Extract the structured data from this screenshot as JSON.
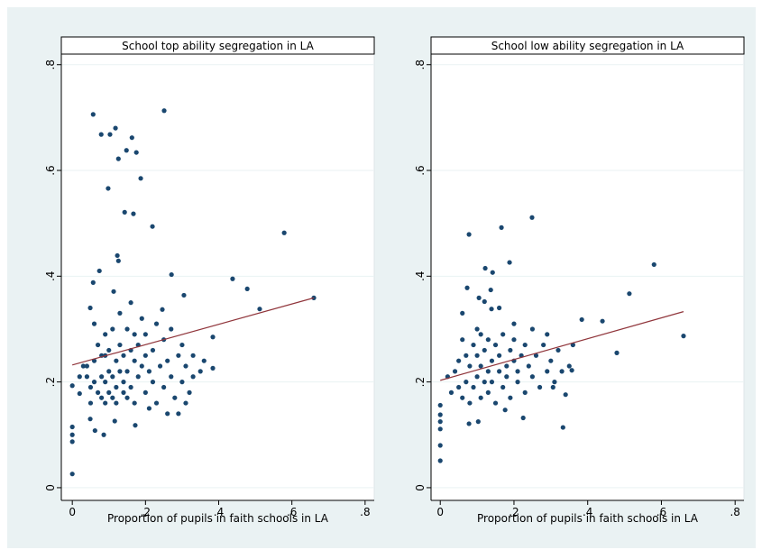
{
  "chart_data": [
    {
      "type": "scatter",
      "title": "School top ability segregation in LA",
      "x_label": "Proportion of pupils in faith schools in LA",
      "points": {
        "color": "#1a476f",
        "x": [
          0.057,
          0.251,
          0.079,
          0.103,
          0.118,
          0.163,
          0.148,
          0.126,
          0.175,
          0.187,
          0.098,
          0.143,
          0.167,
          0.219,
          0.579,
          0.123,
          0.126,
          0.074,
          0.057,
          0.271,
          0.438,
          0.478,
          0.113,
          0.305,
          0.512,
          0.049,
          0.16,
          0.246,
          0.66,
          0.384,
          0.384,
          0,
          0,
          0,
          0,
          0,
          0.086,
          0.062,
          0.049,
          0.116,
          0.172,
          0.02,
          0.02,
          0.03,
          0.04,
          0.05,
          0.05,
          0.06,
          0.06,
          0.07,
          0.07,
          0.08,
          0.08,
          0.08,
          0.09,
          0.09,
          0.09,
          0.1,
          0.1,
          0.1,
          0.11,
          0.11,
          0.11,
          0.12,
          0.12,
          0.12,
          0.13,
          0.13,
          0.13,
          0.14,
          0.14,
          0.14,
          0.15,
          0.15,
          0.15,
          0.16,
          0.16,
          0.17,
          0.17,
          0.17,
          0.18,
          0.18,
          0.19,
          0.19,
          0.2,
          0.2,
          0.2,
          0.21,
          0.21,
          0.22,
          0.22,
          0.23,
          0.23,
          0.24,
          0.25,
          0.25,
          0.26,
          0.27,
          0.27,
          0.28,
          0.29,
          0.3,
          0.3,
          0.31,
          0.32,
          0.33,
          0.33,
          0.35,
          0.36,
          0.29,
          0.31,
          0.26,
          0.06,
          0.09,
          0.04
        ],
        "y": [
          0.706,
          0.713,
          0.668,
          0.668,
          0.68,
          0.662,
          0.638,
          0.622,
          0.634,
          0.585,
          0.566,
          0.521,
          0.518,
          0.494,
          0.482,
          0.439,
          0.429,
          0.41,
          0.388,
          0.403,
          0.395,
          0.376,
          0.371,
          0.364,
          0.338,
          0.34,
          0.35,
          0.337,
          0.359,
          0.285,
          0.226,
          0.026,
          0.087,
          0.1,
          0.115,
          0.193,
          0.1,
          0.108,
          0.13,
          0.126,
          0.118,
          0.178,
          0.21,
          0.23,
          0.21,
          0.19,
          0.16,
          0.24,
          0.2,
          0.18,
          0.27,
          0.21,
          0.17,
          0.25,
          0.2,
          0.16,
          0.29,
          0.22,
          0.18,
          0.26,
          0.17,
          0.21,
          0.3,
          0.19,
          0.24,
          0.16,
          0.22,
          0.33,
          0.27,
          0.2,
          0.18,
          0.25,
          0.22,
          0.3,
          0.17,
          0.26,
          0.19,
          0.24,
          0.29,
          0.16,
          0.21,
          0.27,
          0.23,
          0.32,
          0.18,
          0.25,
          0.29,
          0.22,
          0.15,
          0.26,
          0.2,
          0.31,
          0.16,
          0.23,
          0.28,
          0.19,
          0.24,
          0.3,
          0.21,
          0.17,
          0.25,
          0.2,
          0.27,
          0.23,
          0.18,
          0.21,
          0.25,
          0.22,
          0.24,
          0.14,
          0.16,
          0.14,
          0.31,
          0.25,
          0.23
        ]
      },
      "fit": {
        "color": "#90353b",
        "x": [
          0,
          0.66
        ],
        "y": [
          0.232,
          0.359
        ]
      },
      "xlim": [
        -0.03,
        0.825
      ],
      "ylim": [
        -0.024,
        0.82
      ],
      "xticks": [
        0,
        {
          "value": 0.2,
          "label": ".2"
        },
        {
          "value": 0.4,
          "label": ".4"
        },
        {
          "value": 0.6,
          "label": ".6"
        },
        {
          "value": 0.8,
          "label": ".8"
        }
      ],
      "yticks": [
        0,
        {
          "value": 0.2,
          "label": ".2"
        },
        {
          "value": 0.4,
          "label": ".4"
        },
        {
          "value": 0.6,
          "label": ".6"
        },
        {
          "value": 0.8,
          "label": ".8"
        }
      ],
      "grid": true
    },
    {
      "type": "scatter",
      "title": "School low ability segregation in LA",
      "x_label": "Proportion of pupils in faith schools in LA",
      "points": {
        "color": "#1a476f",
        "x": [
          0.078,
          0.166,
          0.249,
          0.58,
          0.188,
          0.122,
          0.142,
          0.073,
          0.137,
          0.513,
          0.105,
          0.12,
          0.139,
          0.44,
          0.384,
          0.66,
          0.479,
          0.333,
          0,
          0,
          0,
          0,
          0,
          0,
          0.078,
          0.103,
          0.176,
          0.225,
          0.34,
          0.357,
          0.306,
          0.02,
          0.03,
          0.04,
          0.05,
          0.05,
          0.06,
          0.06,
          0.07,
          0.07,
          0.08,
          0.08,
          0.09,
          0.09,
          0.1,
          0.1,
          0.11,
          0.11,
          0.11,
          0.12,
          0.12,
          0.13,
          0.13,
          0.13,
          0.14,
          0.14,
          0.15,
          0.15,
          0.16,
          0.16,
          0.17,
          0.17,
          0.18,
          0.18,
          0.19,
          0.19,
          0.2,
          0.2,
          0.21,
          0.21,
          0.22,
          0.23,
          0.23,
          0.24,
          0.25,
          0.25,
          0.26,
          0.27,
          0.28,
          0.29,
          0.29,
          0.3,
          0.31,
          0.32,
          0.33,
          0.35,
          0.36,
          0.06,
          0.1,
          0.16,
          0.2
        ],
        "y": [
          0.479,
          0.492,
          0.511,
          0.422,
          0.426,
          0.415,
          0.407,
          0.378,
          0.374,
          0.367,
          0.359,
          0.352,
          0.338,
          0.315,
          0.318,
          0.287,
          0.255,
          0.114,
          0.051,
          0.08,
          0.111,
          0.125,
          0.138,
          0.156,
          0.121,
          0.125,
          0.147,
          0.132,
          0.176,
          0.222,
          0.19,
          0.21,
          0.18,
          0.22,
          0.19,
          0.24,
          0.17,
          0.28,
          0.2,
          0.25,
          0.16,
          0.23,
          0.27,
          0.19,
          0.21,
          0.25,
          0.17,
          0.23,
          0.29,
          0.2,
          0.26,
          0.22,
          0.18,
          0.28,
          0.24,
          0.2,
          0.27,
          0.16,
          0.22,
          0.25,
          0.19,
          0.29,
          0.23,
          0.21,
          0.26,
          0.17,
          0.24,
          0.28,
          0.2,
          0.22,
          0.25,
          0.18,
          0.27,
          0.23,
          0.21,
          0.3,
          0.25,
          0.19,
          0.27,
          0.22,
          0.29,
          0.24,
          0.2,
          0.26,
          0.22,
          0.23,
          0.27,
          0.33,
          0.3,
          0.34,
          0.31
        ]
      },
      "fit": {
        "color": "#90353b",
        "x": [
          0,
          0.66
        ],
        "y": [
          0.203,
          0.333
        ]
      },
      "xlim": [
        -0.025,
        0.824
      ],
      "ylim": [
        -0.024,
        0.82
      ],
      "xticks": [
        0,
        {
          "value": 0.2,
          "label": ".2"
        },
        {
          "value": 0.4,
          "label": ".4"
        },
        {
          "value": 0.6,
          "label": ".6"
        },
        {
          "value": 0.8,
          "label": ".8"
        }
      ],
      "yticks": [
        0,
        {
          "value": 0.2,
          "label": ".2"
        },
        {
          "value": 0.4,
          "label": ".4"
        },
        {
          "value": 0.6,
          "label": ".6"
        },
        {
          "value": 0.8,
          "label": ".8"
        }
      ],
      "grid": true
    }
  ]
}
